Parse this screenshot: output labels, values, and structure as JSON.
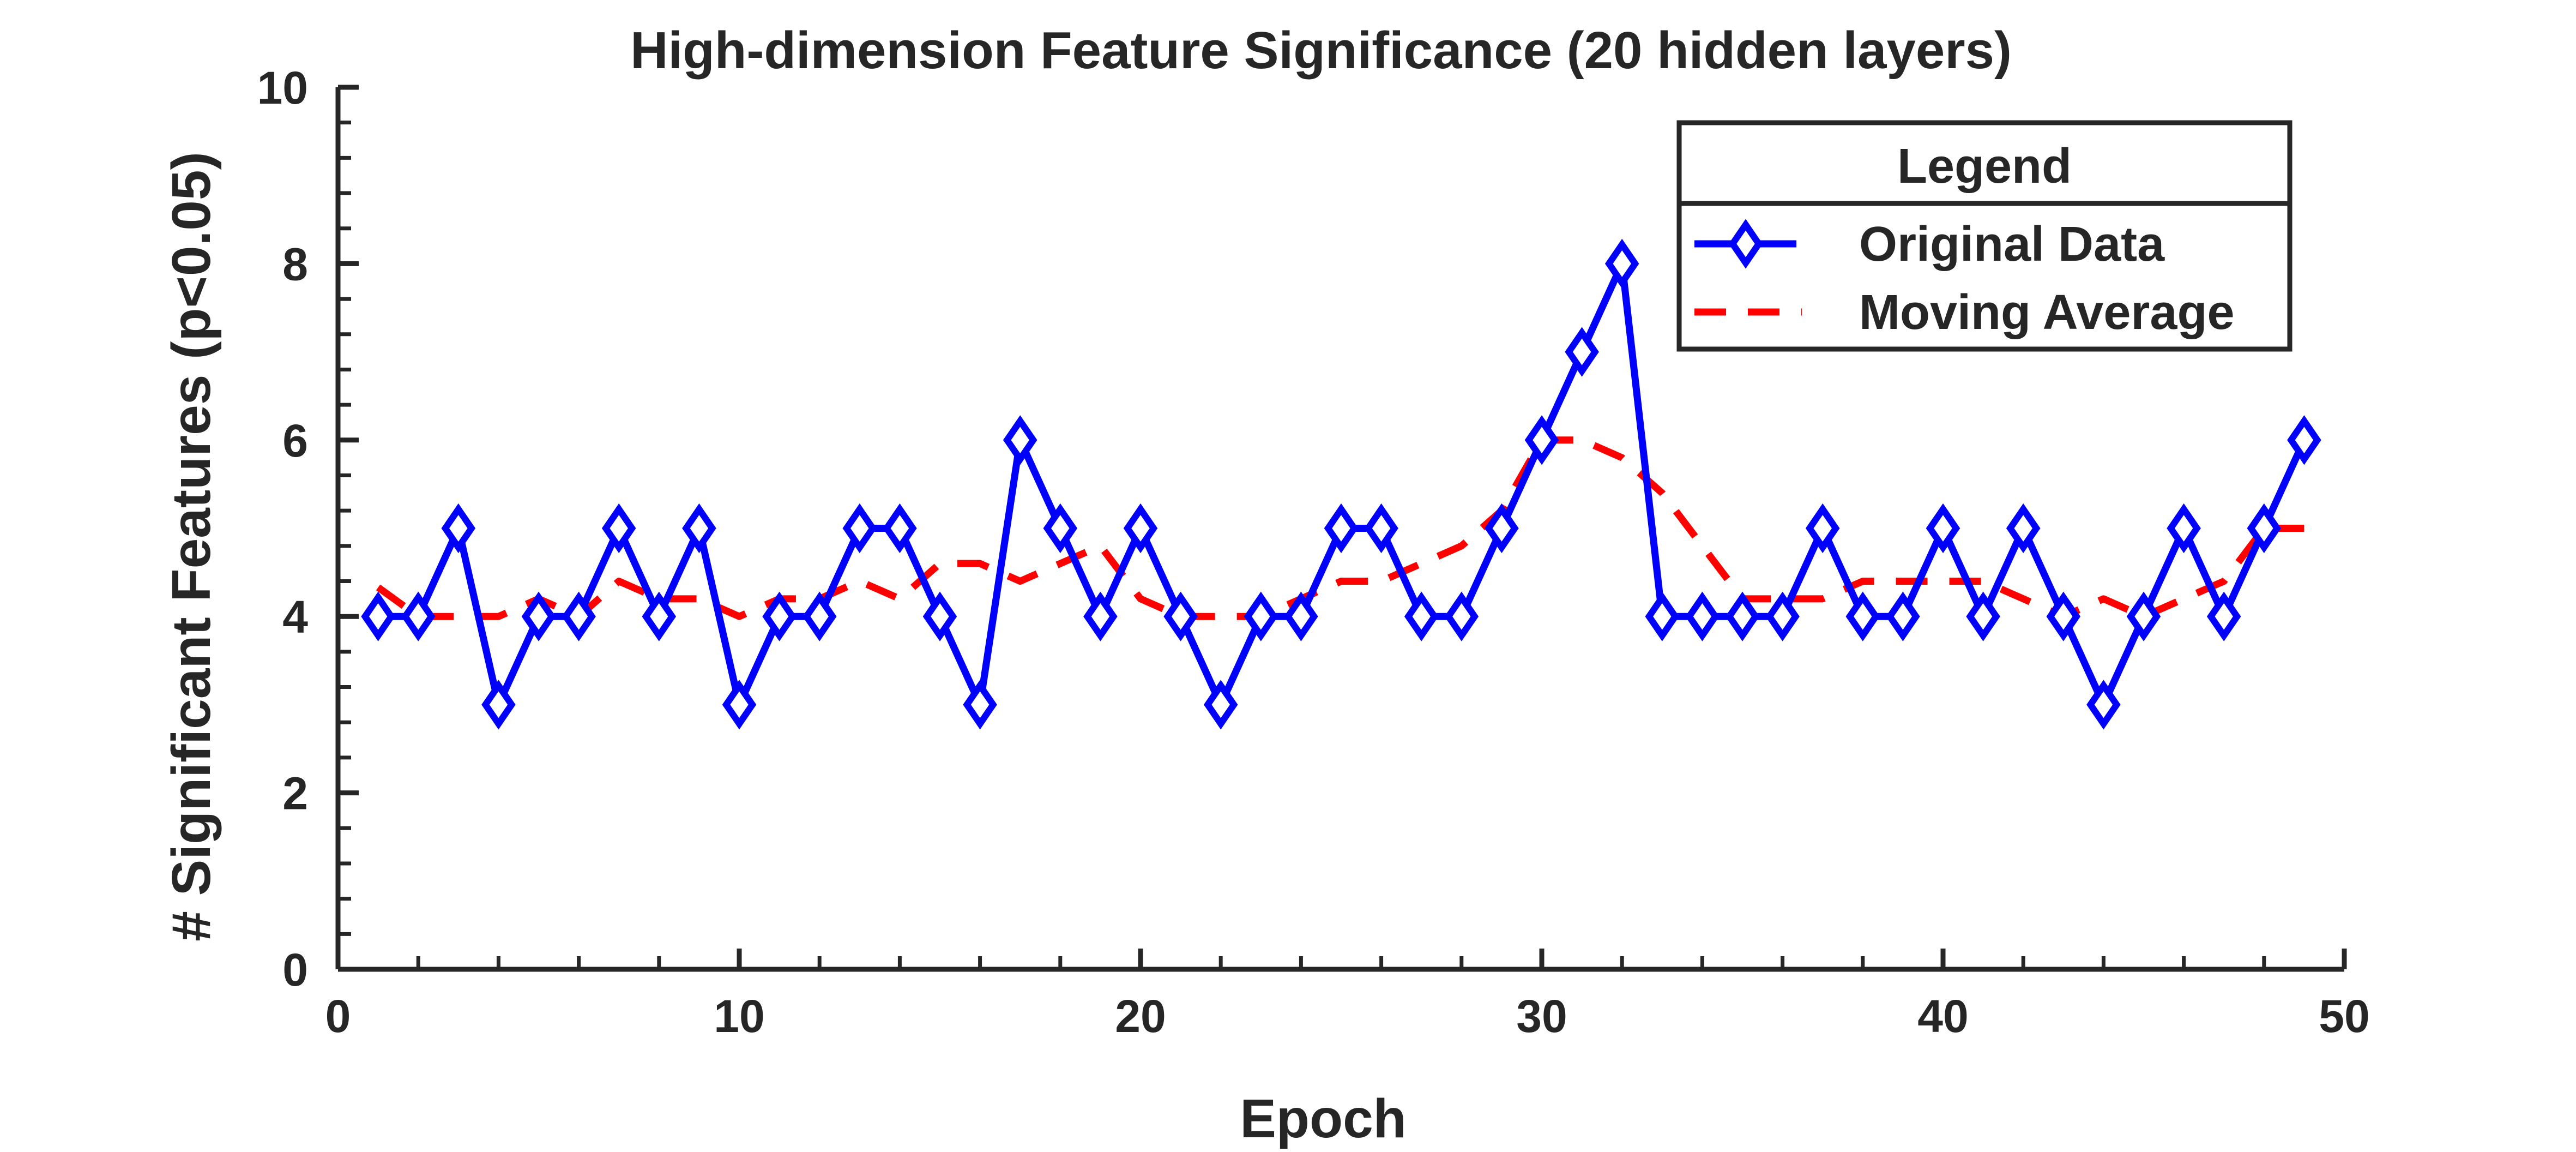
{
  "chart_data": {
    "type": "line",
    "title": "High-dimension Feature Significance (20 hidden layers)",
    "xlabel": "Epoch",
    "ylabel": "# Significant Features (p<0.05)",
    "xlim": [
      0,
      50
    ],
    "ylim": [
      0,
      10
    ],
    "xticks": [
      0,
      10,
      20,
      30,
      40,
      50
    ],
    "yticks": [
      0,
      2,
      4,
      6,
      8,
      10
    ],
    "grid": false,
    "legend": {
      "title": "Legend",
      "position": "top-right"
    },
    "series": [
      {
        "name": "Original Data",
        "style": "solid-diamond",
        "color": "#0000ff",
        "x": [
          1,
          2,
          3,
          4,
          5,
          6,
          7,
          8,
          9,
          10,
          11,
          12,
          13,
          14,
          15,
          16,
          17,
          18,
          19,
          20,
          21,
          22,
          23,
          24,
          25,
          26,
          27,
          28,
          29,
          30,
          31,
          32,
          33,
          34,
          35,
          36,
          37,
          38,
          39,
          40,
          41,
          42,
          43,
          44,
          45,
          46,
          47,
          48,
          49
        ],
        "y": [
          4,
          4,
          5,
          3,
          4,
          4,
          5,
          4,
          5,
          3,
          4,
          4,
          5,
          5,
          4,
          3,
          6,
          5,
          4,
          5,
          4,
          3,
          4,
          4,
          5,
          5,
          4,
          4,
          5,
          6,
          7,
          8,
          4,
          4,
          4,
          4,
          5,
          4,
          4,
          5,
          4,
          5,
          4,
          3,
          4,
          5,
          4,
          5,
          6
        ]
      },
      {
        "name": "Moving Average",
        "style": "dashed",
        "color": "#ff0000",
        "x": [
          1,
          2,
          3,
          4,
          5,
          6,
          7,
          8,
          9,
          10,
          11,
          12,
          13,
          14,
          15,
          16,
          17,
          18,
          19,
          20,
          21,
          22,
          23,
          24,
          25,
          26,
          27,
          28,
          29,
          30,
          31,
          32,
          33,
          34,
          35,
          36,
          37,
          38,
          39,
          40,
          41,
          42,
          43,
          44,
          45,
          46,
          47,
          48,
          49
        ],
        "y": [
          4.33,
          4,
          4,
          4,
          4.2,
          4,
          4.4,
          4.2,
          4.2,
          4,
          4.2,
          4.2,
          4.4,
          4.2,
          4.6,
          4.6,
          4.4,
          4.6,
          4.8,
          4.2,
          4,
          4,
          4,
          4.2,
          4.4,
          4.4,
          4.6,
          4.8,
          5.2,
          6,
          6,
          5.8,
          5.4,
          4.8,
          4.2,
          4.2,
          4.2,
          4.4,
          4.4,
          4.4,
          4.4,
          4.2,
          4,
          4.2,
          4,
          4.2,
          4.4,
          5,
          5
        ]
      }
    ]
  }
}
